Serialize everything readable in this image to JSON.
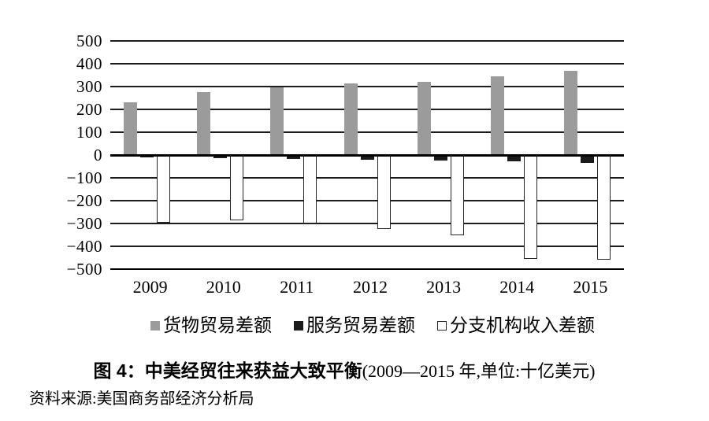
{
  "figure": {
    "title_bold": "图 4：中美经贸往来获益大致平衡",
    "title_note": "(2009—2015 年,单位:十亿美元)",
    "source": "资料来源:美国商务部经济分析局"
  },
  "chart_data": {
    "type": "bar",
    "title": "图 4：中美经贸往来获益大致平衡(2009—2015 年,单位:十亿美元)",
    "xlabel": "",
    "ylabel": "",
    "unit": "十亿美元",
    "categories": [
      "2009",
      "2010",
      "2011",
      "2012",
      "2013",
      "2014",
      "2015"
    ],
    "series": [
      {
        "name": "货物贸易差额",
        "slug": "goods-trade-balance",
        "color": "#9b9b9b",
        "border_color": "#9b9b9b",
        "values": [
          230,
          275,
          295,
          315,
          320,
          345,
          370
        ]
      },
      {
        "name": "服务贸易差额",
        "slug": "services-trade-balance",
        "color": "#1b1b1b",
        "border_color": "#1b1b1b",
        "values": [
          -10,
          -13,
          -18,
          -20,
          -24,
          -28,
          -33
        ]
      },
      {
        "name": "分支机构收入差额",
        "slug": "branch-income-balance",
        "color": "#ffffff",
        "border_color": "#262626",
        "values": [
          -295,
          -285,
          -300,
          -325,
          -350,
          -455,
          -460
        ]
      }
    ],
    "ylim": [
      -500,
      500
    ],
    "yticks": [
      500,
      400,
      300,
      200,
      100,
      0,
      -100,
      -200,
      -300,
      -400,
      -500
    ],
    "grid": "horizontal",
    "legend_position": "bottom",
    "source": "资料来源:美国商务部经济分析局"
  },
  "colors": {
    "background": "#ffffff",
    "grid": "#1c1c1c",
    "zero_line": "#000000",
    "text": "#000000"
  }
}
